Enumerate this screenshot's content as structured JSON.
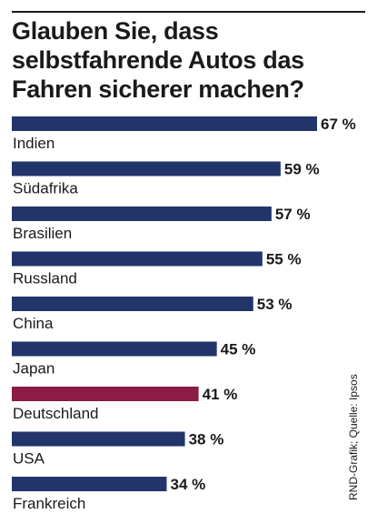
{
  "chart_data": {
    "type": "bar",
    "orientation": "horizontal",
    "title": "Glauben Sie, dass selbstfahrende Autos das Fahren sicherer machen?",
    "categories": [
      "Indien",
      "Südafrika",
      "Brasilien",
      "Russland",
      "China",
      "Japan",
      "Deutschland",
      "USA",
      "Frankreich"
    ],
    "values": [
      67,
      59,
      57,
      55,
      53,
      45,
      41,
      38,
      34
    ],
    "value_labels": [
      "67 %",
      "59 %",
      "57 %",
      "55 %",
      "53 %",
      "45 %",
      "41 %",
      "38 %",
      "34 %"
    ],
    "highlight_category": "Deutschland",
    "xlim": [
      0,
      67
    ],
    "grid": false,
    "legend": "none",
    "colors": {
      "bar": "#22356b",
      "highlight": "#8a1c45"
    }
  },
  "credit": "RND-Grafik; Quelle: Ipsos"
}
